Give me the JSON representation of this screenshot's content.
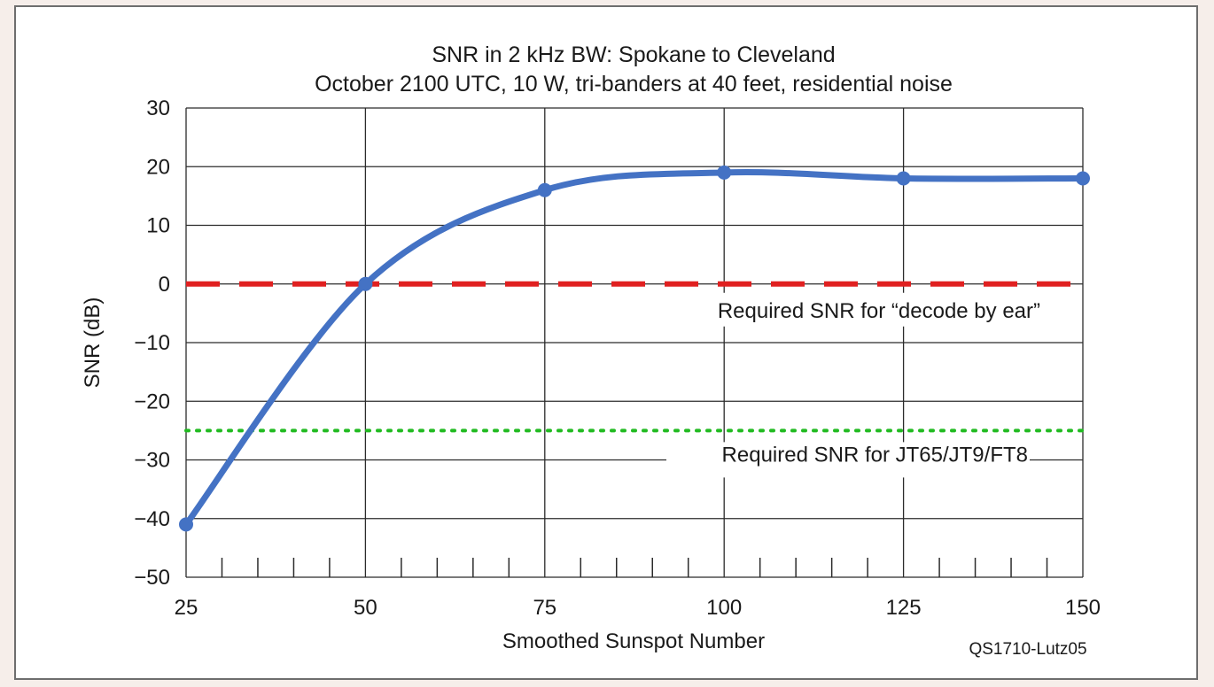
{
  "chart_data": {
    "type": "line",
    "title": "SNR in 2 kHz BW: Spokane to Cleveland",
    "subtitle": "October 2100 UTC, 10 W, tri-banders at 40 feet, residential noise",
    "xlabel": "Smoothed Sunspot Number",
    "ylabel": "SNR (dB)",
    "xlim": [
      25,
      150
    ],
    "ylim": [
      -50,
      30
    ],
    "xticks": [
      25,
      50,
      75,
      100,
      125,
      150
    ],
    "xtick_labels": [
      "25",
      "50",
      "75",
      "100",
      "125",
      "150"
    ],
    "yticks": [
      30,
      20,
      10,
      0,
      -10,
      -20,
      -30,
      -40,
      -50
    ],
    "ytick_labels": [
      "30",
      "20",
      "10",
      "0",
      "−10",
      "−20",
      "−30",
      "−40",
      "−50"
    ],
    "minor_xticks_step": 5,
    "grid": true,
    "series": [
      {
        "color": "#4472c4",
        "x": [
          25,
          50,
          75,
          100,
          125,
          150
        ],
        "y": [
          -41,
          0,
          16,
          19,
          18,
          18
        ]
      }
    ],
    "reference_lines": [
      {
        "y": 0,
        "style": "dashed",
        "color": "#e02020",
        "label": "Required SNR for “decode by ear”"
      },
      {
        "y": -25,
        "style": "dotted",
        "color": "#22bb22",
        "label": "Required SNR for JT65/JT9/FT8"
      }
    ],
    "credit": "QS1710-Lutz05"
  }
}
